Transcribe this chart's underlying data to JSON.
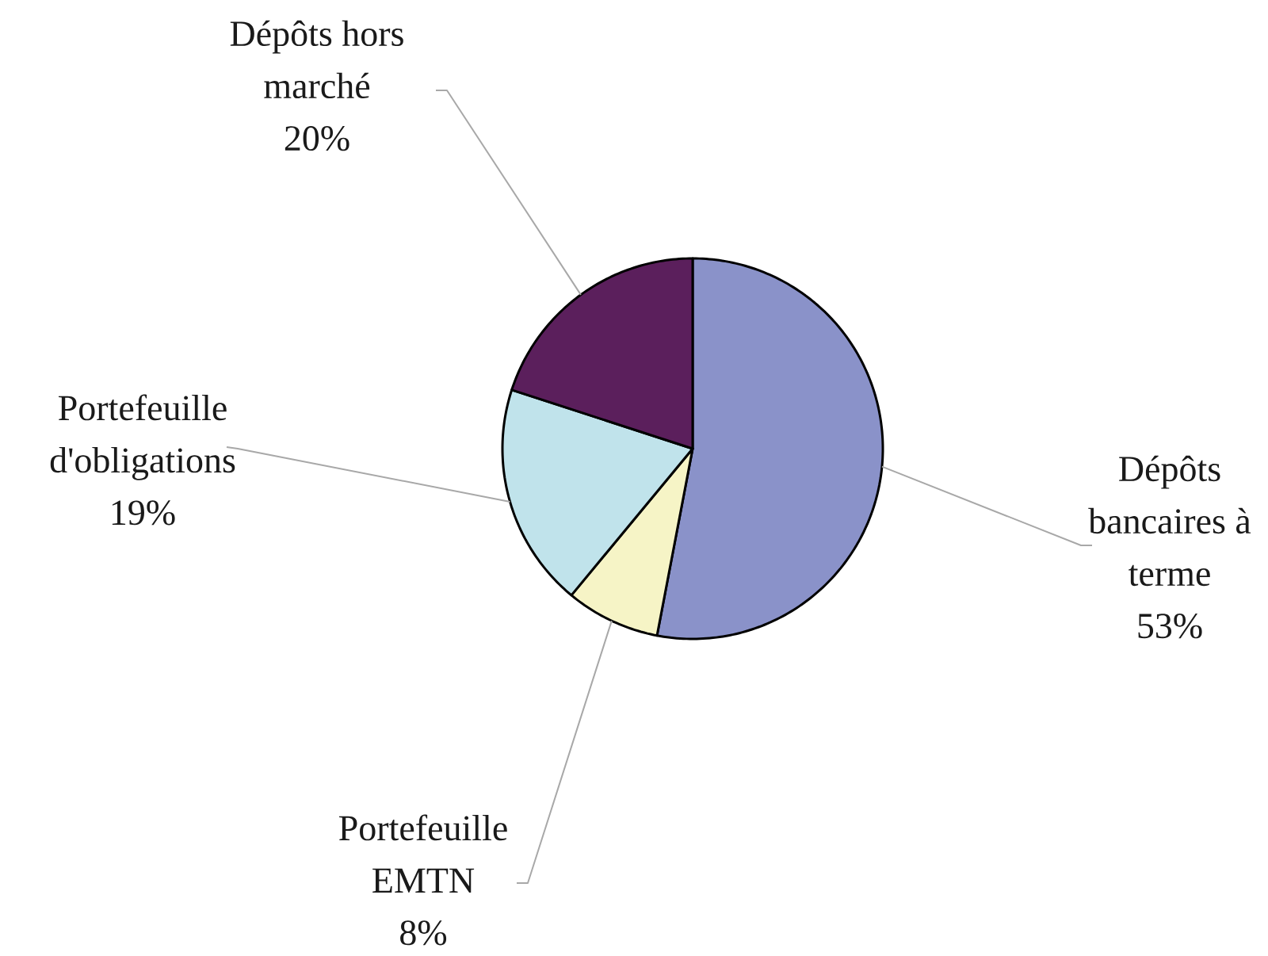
{
  "chart_data": {
    "type": "pie",
    "categories": [
      "Dépôts bancaires à terme",
      "Portefeuille EMTN",
      "Portefeuille d'obligations",
      "Dépôts hors marché"
    ],
    "values": [
      53,
      8,
      19,
      20
    ],
    "value_labels": [
      "53%",
      "8%",
      "19%",
      "20%"
    ],
    "colors": [
      "#8a92c9",
      "#f6f4c6",
      "#c0e3eb",
      "#5b1f5c"
    ]
  }
}
